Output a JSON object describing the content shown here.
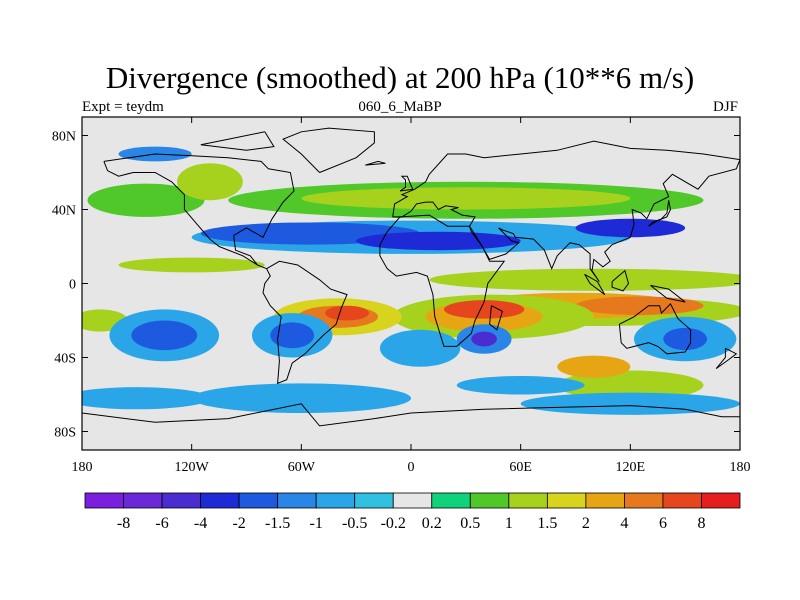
{
  "title": "Divergence (smoothed) at 200 hPa (10**6 m/s)",
  "subtitle_left": "Expt = teydm",
  "subtitle_center": "060_6_MaBP",
  "subtitle_right": "DJF",
  "map": {
    "lon_range": [
      -180,
      180
    ],
    "lat_range": [
      -90,
      90
    ],
    "lon_ticks": [
      {
        "value": -180,
        "label": "180"
      },
      {
        "value": -120,
        "label": "120W"
      },
      {
        "value": -60,
        "label": "60W"
      },
      {
        "value": 0,
        "label": "0"
      },
      {
        "value": 60,
        "label": "60E"
      },
      {
        "value": 120,
        "label": "120E"
      },
      {
        "value": 180,
        "label": "180"
      }
    ],
    "lat_ticks": [
      {
        "value": 80,
        "label": "80N"
      },
      {
        "value": 40,
        "label": "40N"
      },
      {
        "value": 0,
        "label": "0"
      },
      {
        "value": -40,
        "label": "40S"
      },
      {
        "value": -80,
        "label": "80S"
      }
    ],
    "background_color": "#e6e6e6",
    "coastline_color": "#000000"
  },
  "colorbar": {
    "colors": [
      "#7a1fe0",
      "#6a28d8",
      "#4a2cd0",
      "#1e2ad6",
      "#1e5ae0",
      "#2a86e6",
      "#2aa6e8",
      "#30c0e0",
      "#e6e6e6",
      "#10d27a",
      "#50c82a",
      "#a6d21e",
      "#d8d41e",
      "#e6a614",
      "#e6781e",
      "#e6461e",
      "#e61e1e"
    ],
    "labels": [
      "-8",
      "-6",
      "-4",
      "-2",
      "-1.5",
      "-1",
      "-0.5",
      "-0.2",
      "0.2",
      "0.5",
      "1",
      "1.5",
      "2",
      "4",
      "6",
      "8"
    ]
  },
  "fields": [
    {
      "lon": 0,
      "lat": 27,
      "rx": 170,
      "ry": 12,
      "level": 8
    },
    {
      "lon": 0,
      "lat": 25,
      "rx": 120,
      "ry": 9,
      "level": 6
    },
    {
      "lon": -55,
      "lat": 27,
      "rx": 60,
      "ry": 6,
      "level": 4
    },
    {
      "lon": 15,
      "lat": 23,
      "rx": 45,
      "ry": 5,
      "level": 3
    },
    {
      "lon": 120,
      "lat": 30,
      "rx": 30,
      "ry": 5,
      "level": 3
    },
    {
      "lon": 30,
      "lat": 45,
      "rx": 130,
      "ry": 10,
      "level": 10
    },
    {
      "lon": 30,
      "lat": 46,
      "rx": 90,
      "ry": 6,
      "level": 11
    },
    {
      "lon": -145,
      "lat": 45,
      "rx": 32,
      "ry": 9,
      "level": 10
    },
    {
      "lon": -110,
      "lat": 55,
      "rx": 18,
      "ry": 10,
      "level": 11
    },
    {
      "lon": -120,
      "lat": 10,
      "rx": 40,
      "ry": 4,
      "level": 11
    },
    {
      "lon": -140,
      "lat": 70,
      "rx": 20,
      "ry": 4,
      "level": 5
    },
    {
      "lon": -170,
      "lat": -20,
      "rx": 15,
      "ry": 6,
      "level": 11
    },
    {
      "lon": 100,
      "lat": 2,
      "rx": 90,
      "ry": 6,
      "level": 11
    },
    {
      "lon": 100,
      "lat": -15,
      "rx": 85,
      "ry": 8,
      "level": 11
    },
    {
      "lon": 90,
      "lat": -12,
      "rx": 60,
      "ry": 7,
      "level": 13
    },
    {
      "lon": 125,
      "lat": -12,
      "rx": 35,
      "ry": 5,
      "level": 14
    },
    {
      "lon": 45,
      "lat": -18,
      "rx": 55,
      "ry": 12,
      "level": 11
    },
    {
      "lon": 40,
      "lat": -18,
      "rx": 32,
      "ry": 8,
      "level": 13
    },
    {
      "lon": 40,
      "lat": -14,
      "rx": 22,
      "ry": 5,
      "level": 15
    },
    {
      "lon": -40,
      "lat": -18,
      "rx": 35,
      "ry": 10,
      "level": 12
    },
    {
      "lon": -40,
      "lat": -18,
      "rx": 22,
      "ry": 6,
      "level": 14
    },
    {
      "lon": -35,
      "lat": -16,
      "rx": 12,
      "ry": 4,
      "level": 15
    },
    {
      "lon": -65,
      "lat": -28,
      "rx": 22,
      "ry": 12,
      "level": 6
    },
    {
      "lon": -65,
      "lat": -28,
      "rx": 12,
      "ry": 7,
      "level": 4
    },
    {
      "lon": -135,
      "lat": -28,
      "rx": 30,
      "ry": 14,
      "level": 6
    },
    {
      "lon": -135,
      "lat": -28,
      "rx": 18,
      "ry": 8,
      "level": 4
    },
    {
      "lon": 5,
      "lat": -35,
      "rx": 22,
      "ry": 10,
      "level": 6
    },
    {
      "lon": 40,
      "lat": -30,
      "rx": 15,
      "ry": 8,
      "level": 5
    },
    {
      "lon": 40,
      "lat": -30,
      "rx": 7,
      "ry": 4,
      "level": 2
    },
    {
      "lon": 150,
      "lat": -30,
      "rx": 28,
      "ry": 12,
      "level": 6
    },
    {
      "lon": 150,
      "lat": -30,
      "rx": 12,
      "ry": 6,
      "level": 4
    },
    {
      "lon": 120,
      "lat": -55,
      "rx": 40,
      "ry": 8,
      "level": 11
    },
    {
      "lon": 100,
      "lat": -45,
      "rx": 20,
      "ry": 6,
      "level": 13
    },
    {
      "lon": -60,
      "lat": -62,
      "rx": 60,
      "ry": 8,
      "level": 6
    },
    {
      "lon": 120,
      "lat": -65,
      "rx": 60,
      "ry": 6,
      "level": 6
    },
    {
      "lon": -150,
      "lat": -62,
      "rx": 40,
      "ry": 6,
      "level": 6
    },
    {
      "lon": 60,
      "lat": -55,
      "rx": 35,
      "ry": 5,
      "level": 6
    }
  ],
  "coastlines": [
    [
      [
        -168,
        66
      ],
      [
        -140,
        70
      ],
      [
        -120,
        69
      ],
      [
        -100,
        68
      ],
      [
        -82,
        66
      ],
      [
        -78,
        62
      ],
      [
        -66,
        60
      ],
      [
        -64,
        50
      ],
      [
        -70,
        44
      ],
      [
        -76,
        35
      ],
      [
        -81,
        25
      ],
      [
        -90,
        30
      ],
      [
        -97,
        26
      ],
      [
        -96,
        18
      ],
      [
        -88,
        15
      ],
      [
        -84,
        10
      ],
      [
        -79,
        8
      ],
      [
        -84,
        10
      ],
      [
        -92,
        15
      ],
      [
        -105,
        20
      ],
      [
        -110,
        24
      ],
      [
        -117,
        32
      ],
      [
        -124,
        40
      ],
      [
        -124,
        48
      ],
      [
        -131,
        55
      ],
      [
        -140,
        60
      ],
      [
        -152,
        60
      ],
      [
        -160,
        58
      ],
      [
        -166,
        61
      ],
      [
        -168,
        66
      ]
    ],
    [
      [
        -79,
        8
      ],
      [
        -72,
        12
      ],
      [
        -62,
        10
      ],
      [
        -50,
        2
      ],
      [
        -44,
        -3
      ],
      [
        -35,
        -6
      ],
      [
        -38,
        -13
      ],
      [
        -41,
        -22
      ],
      [
        -48,
        -28
      ],
      [
        -58,
        -38
      ],
      [
        -65,
        -43
      ],
      [
        -68,
        -52
      ],
      [
        -73,
        -54
      ],
      [
        -72,
        -42
      ],
      [
        -73,
        -30
      ],
      [
        -71,
        -18
      ],
      [
        -77,
        -12
      ],
      [
        -81,
        -5
      ],
      [
        -80,
        0
      ],
      [
        -77,
        4
      ],
      [
        -79,
        8
      ]
    ],
    [
      [
        -50,
        60
      ],
      [
        -30,
        68
      ],
      [
        -20,
        76
      ],
      [
        -20,
        82
      ],
      [
        -45,
        84
      ],
      [
        -60,
        82
      ],
      [
        -70,
        78
      ],
      [
        -60,
        70
      ],
      [
        -50,
        60
      ]
    ],
    [
      [
        -10,
        36
      ],
      [
        -9,
        43
      ],
      [
        -2,
        47
      ],
      [
        -5,
        48
      ],
      [
        2,
        51
      ],
      [
        8,
        55
      ],
      [
        10,
        59
      ],
      [
        20,
        70
      ],
      [
        30,
        70
      ],
      [
        40,
        68
      ],
      [
        60,
        70
      ],
      [
        80,
        72
      ],
      [
        100,
        77
      ],
      [
        120,
        73
      ],
      [
        140,
        72
      ],
      [
        160,
        70
      ],
      [
        180,
        67
      ],
      [
        178,
        62
      ],
      [
        163,
        58
      ],
      [
        157,
        51
      ],
      [
        143,
        59
      ],
      [
        138,
        54
      ],
      [
        141,
        47
      ],
      [
        133,
        43
      ],
      [
        129,
        35
      ],
      [
        126,
        38
      ],
      [
        121,
        40
      ],
      [
        122,
        32
      ],
      [
        120,
        25
      ],
      [
        110,
        21
      ],
      [
        106,
        17
      ],
      [
        109,
        12
      ],
      [
        105,
        9
      ],
      [
        100,
        13
      ],
      [
        99,
        7
      ],
      [
        103,
        1
      ],
      [
        98,
        8
      ],
      [
        98,
        16
      ],
      [
        92,
        21
      ],
      [
        87,
        22
      ],
      [
        80,
        15
      ],
      [
        77,
        8
      ],
      [
        73,
        18
      ],
      [
        67,
        24
      ],
      [
        57,
        25
      ],
      [
        56,
        27
      ],
      [
        50,
        29
      ],
      [
        48,
        30
      ],
      [
        55,
        23
      ],
      [
        59,
        22
      ],
      [
        52,
        16
      ],
      [
        43,
        13
      ],
      [
        39,
        20
      ],
      [
        33,
        28
      ],
      [
        32,
        31
      ],
      [
        35,
        36
      ],
      [
        28,
        37
      ],
      [
        22,
        40
      ],
      [
        26,
        41
      ],
      [
        19,
        42
      ],
      [
        15,
        40
      ],
      [
        12,
        44
      ],
      [
        8,
        44
      ],
      [
        3,
        43
      ],
      [
        0,
        39
      ],
      [
        -5,
        36
      ],
      [
        -10,
        36
      ]
    ],
    [
      [
        -6,
        36
      ],
      [
        10,
        37
      ],
      [
        20,
        31
      ],
      [
        32,
        31
      ],
      [
        34,
        28
      ],
      [
        39,
        20
      ],
      [
        43,
        12
      ],
      [
        51,
        12
      ],
      [
        42,
        0
      ],
      [
        40,
        -10
      ],
      [
        35,
        -20
      ],
      [
        33,
        -27
      ],
      [
        25,
        -34
      ],
      [
        18,
        -34
      ],
      [
        13,
        -18
      ],
      [
        12,
        -6
      ],
      [
        9,
        4
      ],
      [
        3,
        6
      ],
      [
        -8,
        4
      ],
      [
        -13,
        8
      ],
      [
        -17,
        15
      ],
      [
        -17,
        21
      ],
      [
        -13,
        28
      ],
      [
        -6,
        36
      ]
    ],
    [
      [
        114,
        -22
      ],
      [
        122,
        -18
      ],
      [
        130,
        -12
      ],
      [
        136,
        -12
      ],
      [
        137,
        -16
      ],
      [
        142,
        -11
      ],
      [
        146,
        -19
      ],
      [
        153,
        -25
      ],
      [
        153,
        -32
      ],
      [
        150,
        -37
      ],
      [
        140,
        -38
      ],
      [
        135,
        -34
      ],
      [
        130,
        -32
      ],
      [
        118,
        -35
      ],
      [
        115,
        -32
      ],
      [
        114,
        -22
      ]
    ],
    [
      [
        -180,
        -70
      ],
      [
        -140,
        -75
      ],
      [
        -100,
        -73
      ],
      [
        -60,
        -65
      ],
      [
        -50,
        -77
      ],
      [
        -20,
        -73
      ],
      [
        0,
        -70
      ],
      [
        40,
        -68
      ],
      [
        80,
        -67
      ],
      [
        120,
        -66
      ],
      [
        150,
        -68
      ],
      [
        170,
        -72
      ],
      [
        180,
        -72
      ]
    ],
    [
      [
        -6,
        50
      ],
      [
        -3,
        52
      ],
      [
        -3,
        56
      ],
      [
        -5,
        58
      ],
      [
        -2,
        58
      ],
      [
        0,
        53
      ],
      [
        1,
        51
      ],
      [
        -6,
        50
      ]
    ],
    [
      [
        130,
        31
      ],
      [
        135,
        34
      ],
      [
        140,
        36
      ],
      [
        142,
        40
      ],
      [
        141,
        45
      ],
      [
        140,
        38
      ],
      [
        137,
        35
      ],
      [
        132,
        33
      ],
      [
        130,
        31
      ]
    ],
    [
      [
        95,
        5
      ],
      [
        102,
        1
      ],
      [
        106,
        -6
      ],
      [
        98,
        0
      ],
      [
        95,
        5
      ]
    ],
    [
      [
        110,
        1
      ],
      [
        117,
        7
      ],
      [
        119,
        0
      ],
      [
        116,
        -4
      ],
      [
        110,
        -2
      ],
      [
        110,
        1
      ]
    ],
    [
      [
        131,
        -1
      ],
      [
        141,
        -3
      ],
      [
        150,
        -10
      ],
      [
        140,
        -8
      ],
      [
        131,
        -1
      ]
    ],
    [
      [
        44,
        -12
      ],
      [
        50,
        -15
      ],
      [
        47,
        -25
      ],
      [
        43,
        -22
      ],
      [
        44,
        -12
      ]
    ],
    [
      [
        172,
        -35
      ],
      [
        178,
        -38
      ],
      [
        174,
        -41
      ],
      [
        167,
        -46
      ],
      [
        172,
        -40
      ],
      [
        172,
        -35
      ]
    ],
    [
      [
        -80,
        82
      ],
      [
        -100,
        78
      ],
      [
        -115,
        75
      ],
      [
        -90,
        72
      ],
      [
        -75,
        74
      ],
      [
        -80,
        82
      ]
    ],
    [
      [
        -25,
        64
      ],
      [
        -14,
        65
      ],
      [
        -18,
        66
      ],
      [
        -25,
        64
      ]
    ]
  ]
}
